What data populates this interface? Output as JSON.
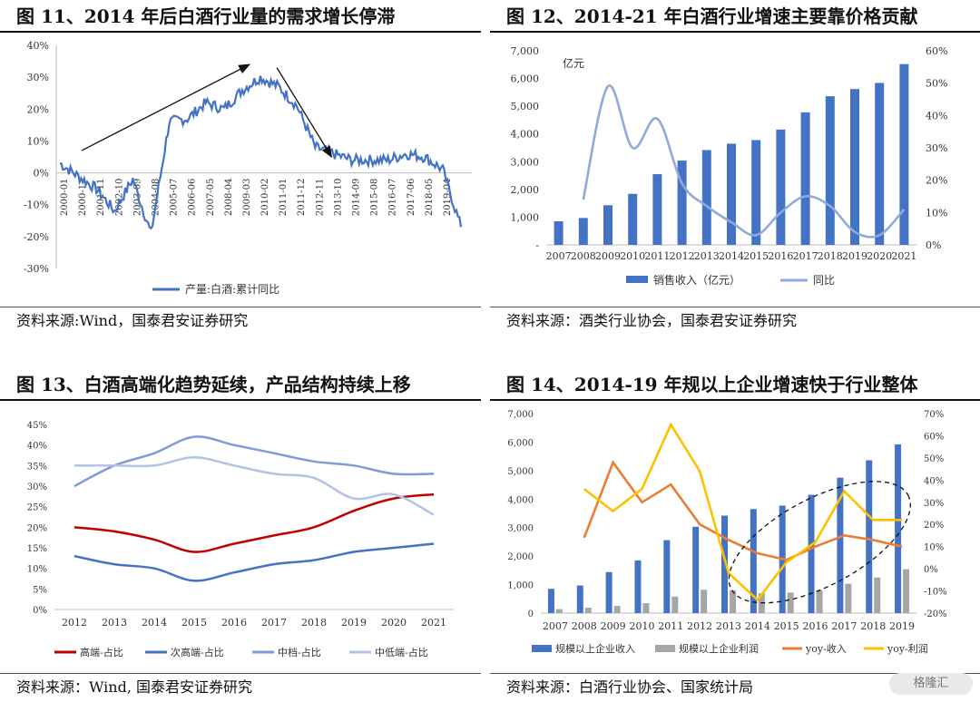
{
  "chart_data": [
    {
      "type": "line",
      "title": "图 11、2014 年后白酒行业量的需求增长停滞",
      "source": "资料来源:Wind，国泰君安证券研究",
      "series": [
        {
          "name": "产量:白酒:累计同比",
          "color": "#4472c4",
          "x": [
            "2000-01",
            "2000-12",
            "2001-11",
            "2002-10",
            "2003-09",
            "2004-08",
            "2005-07",
            "2006-06",
            "2007-05",
            "2008-04",
            "2009-03",
            "2010-02",
            "2011-01",
            "2011-12",
            "2012-11",
            "2013-10",
            "2014-09",
            "2015-08",
            "2016-07",
            "2017-06",
            "2018-05",
            "2019-04",
            "2019-07"
          ],
          "values": [
            3,
            -1,
            -5,
            -12,
            -2,
            -19,
            16,
            17,
            22,
            20,
            26,
            30,
            27,
            21,
            8,
            6,
            4,
            4,
            4,
            6,
            5,
            1,
            -17
          ]
        }
      ],
      "x_ticks": [
        "2000-01",
        "2000-12",
        "2001-11",
        "2002-10",
        "2003-09",
        "2004-08",
        "2005-07",
        "2006-06",
        "2007-05",
        "2008-04",
        "2009-03",
        "2010-02",
        "2011-01",
        "2011-12",
        "2012-11",
        "2013-10",
        "2014-09",
        "2015-08",
        "2016-07",
        "2017-06",
        "2018-05",
        "2019-04"
      ],
      "y_ticks": [
        "40%",
        "30%",
        "20%",
        "10%",
        "0%",
        "-10%",
        "-20%",
        "-30%"
      ],
      "ylim": [
        -30,
        40
      ],
      "legend": "bottom",
      "annotations": [
        "arrow-up",
        "arrow-down"
      ]
    },
    {
      "type": "bar",
      "title": "图 12、2014-21 年白酒行业增速主要靠价格贡献",
      "source": "资料来源：酒类行业协会，国泰君安证券研究",
      "unit_label": "亿元",
      "categories": [
        "2007",
        "2008",
        "2009",
        "2010",
        "2011",
        "2012",
        "2013",
        "2014",
        "2015",
        "2016",
        "2017",
        "2018",
        "2019",
        "2020",
        "2021"
      ],
      "series": [
        {
          "name": "销售收入（亿元）",
          "type": "bar",
          "axis": "left",
          "color": "#4472c4",
          "values": [
            850,
            970,
            1430,
            1840,
            2550,
            3040,
            3420,
            3650,
            3780,
            4160,
            4780,
            5360,
            5620,
            5840,
            6520
          ]
        },
        {
          "name": "同比",
          "type": "line",
          "axis": "right",
          "color": "#8faadc",
          "values": [
            null,
            14,
            49,
            30,
            39,
            19,
            12,
            7,
            3,
            10,
            15,
            12,
            4,
            3,
            11
          ]
        }
      ],
      "y_left_ticks": [
        "7,000",
        "6,000",
        "5,000",
        "4,000",
        "3,000",
        "2,000",
        "1,000",
        "-"
      ],
      "y_right_ticks": [
        "60%",
        "50%",
        "40%",
        "30%",
        "20%",
        "10%",
        "0%"
      ],
      "ylim_left": [
        0,
        7000
      ],
      "ylim_right": [
        0,
        60
      ],
      "legend": "bottom"
    },
    {
      "type": "line",
      "title": "图 13、白酒高端化趋势延续，产品结构持续上移",
      "source": "资料来源：Wind, 国泰君安证券研究",
      "categories": [
        "2012",
        "2013",
        "2014",
        "2015",
        "2016",
        "2017",
        "2018",
        "2019",
        "2020",
        "2021"
      ],
      "series": [
        {
          "name": "高端-占比",
          "color": "#c00000",
          "values": [
            20,
            19,
            17,
            14,
            16,
            18,
            20,
            24,
            27,
            28
          ]
        },
        {
          "name": "次高端-占比",
          "color": "#4472c4",
          "values": [
            13,
            11,
            10,
            7,
            9,
            11,
            12,
            14,
            15,
            16
          ]
        },
        {
          "name": "中档-占比",
          "color": "#7f9bd9",
          "values": [
            30,
            35,
            38,
            42,
            40,
            38,
            36,
            35,
            33,
            33
          ]
        },
        {
          "name": "中低端-占比",
          "color": "#b4c2e6",
          "values": [
            35,
            35,
            35,
            37,
            35,
            33,
            32,
            27,
            28,
            23
          ]
        }
      ],
      "y_ticks": [
        "45%",
        "40%",
        "35%",
        "30%",
        "25%",
        "20%",
        "15%",
        "10%",
        "5%",
        "0%"
      ],
      "ylim": [
        0,
        45
      ],
      "legend": "bottom"
    },
    {
      "type": "bar",
      "title": "图 14、2014-19 年规以上企业增速快于行业整体",
      "source": "资料来源：白酒行业协会、国家统计局",
      "categories": [
        "2007",
        "2008",
        "2009",
        "2010",
        "2011",
        "2012",
        "2013",
        "2014",
        "2015",
        "2016",
        "2017",
        "2018",
        "2019"
      ],
      "series": [
        {
          "name": "规模以上企业收入",
          "type": "bar",
          "axis": "left",
          "color": "#4472c4",
          "values": [
            850,
            970,
            1440,
            1850,
            2560,
            3030,
            3420,
            3650,
            3770,
            4150,
            4750,
            5360,
            5920
          ]
        },
        {
          "name": "规模以上企业利润",
          "type": "bar",
          "axis": "left",
          "color": "#a6a6a6",
          "values": [
            140,
            190,
            250,
            350,
            580,
            820,
            800,
            700,
            720,
            800,
            1030,
            1250,
            1540
          ]
        },
        {
          "name": "yoy-收入",
          "type": "line",
          "axis": "right",
          "color": "#ed7d31",
          "values": [
            null,
            14,
            48,
            30,
            38,
            20,
            13,
            7,
            4,
            10,
            15,
            13,
            10
          ]
        },
        {
          "name": "yoy-利润",
          "type": "line",
          "axis": "right",
          "color": "#ffc000",
          "values": [
            null,
            36,
            26,
            36,
            65,
            44,
            -2,
            -14,
            3,
            12,
            35,
            22,
            22
          ]
        }
      ],
      "y_left_ticks": [
        "7,000",
        "6,000",
        "5,000",
        "4,000",
        "3,000",
        "2,000",
        "1,000",
        "0"
      ],
      "y_right_ticks": [
        "70%",
        "60%",
        "50%",
        "40%",
        "30%",
        "20%",
        "10%",
        "0%",
        "-10%",
        "-20%"
      ],
      "ylim_left": [
        0,
        7000
      ],
      "ylim_right": [
        -20,
        70
      ],
      "legend": "bottom"
    }
  ],
  "watermark": "格隆汇"
}
